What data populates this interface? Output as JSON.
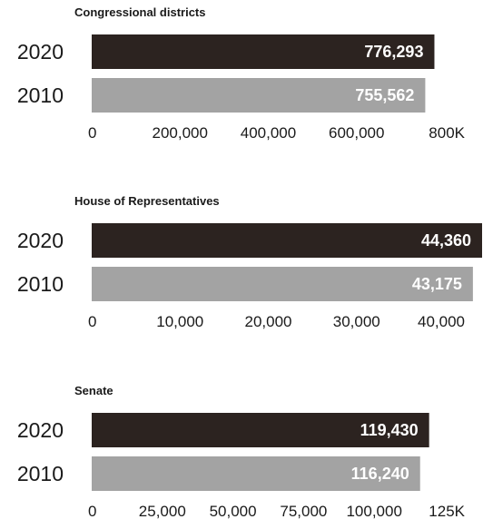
{
  "colors": {
    "y2020": "#2c2320",
    "y2010": "#a3a3a3"
  },
  "chart_data": [
    {
      "type": "bar",
      "orientation": "horizontal",
      "title": "Congressional districts",
      "categories": [
        "2020",
        "2010"
      ],
      "values": [
        776293,
        755562
      ],
      "value_labels": [
        "776,293",
        "755,562"
      ],
      "xlim": [
        0,
        800000
      ],
      "ticks": [
        0,
        200000,
        400000,
        600000,
        800000
      ],
      "tick_labels": [
        "0",
        "200,000",
        "400,000",
        "600,000",
        "800K"
      ],
      "grid": false
    },
    {
      "type": "bar",
      "orientation": "horizontal",
      "title": "House of Representatives",
      "categories": [
        "2020",
        "2010"
      ],
      "values": [
        44360,
        43175
      ],
      "value_labels": [
        "44,360",
        "43,175"
      ],
      "xlim": [
        0,
        40000
      ],
      "ticks": [
        0,
        10000,
        20000,
        30000,
        40000
      ],
      "tick_labels": [
        "0",
        "10,000",
        "20,000",
        "30,000",
        "40,000"
      ],
      "grid": false
    },
    {
      "type": "bar",
      "orientation": "horizontal",
      "title": "Senate",
      "categories": [
        "2020",
        "2010"
      ],
      "values": [
        119430,
        116240
      ],
      "value_labels": [
        "119,430",
        "116,240"
      ],
      "xlim": [
        0,
        125000
      ],
      "ticks": [
        0,
        25000,
        50000,
        75000,
        100000,
        125000
      ],
      "tick_labels": [
        "0",
        "25,000",
        "50,000",
        "75,000",
        "100,000",
        "125K"
      ],
      "grid": false
    }
  ]
}
